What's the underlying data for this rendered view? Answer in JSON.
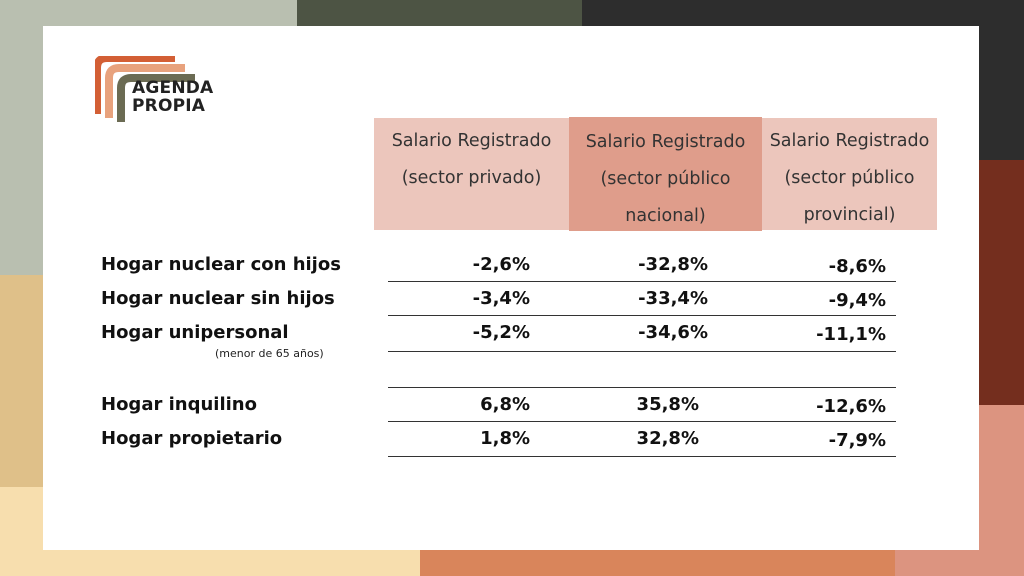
{
  "colors": {
    "col1_header_bg": "#ecc6bc",
    "col2_header_bg": "#df9d8b",
    "col3_header_bg": "#ecc6bc",
    "logo_orange": "#d35f35",
    "logo_peach": "#e8a27d",
    "logo_olive": "#6b6b53"
  },
  "logo": {
    "line1": "AGENDA",
    "line2": "PROPIA"
  },
  "columns": [
    {
      "line1": "Salario Registrado",
      "line2": "(sector privado)",
      "line3": ""
    },
    {
      "line1": "Salario Registrado",
      "line2": "(sector público",
      "line3": "nacional)"
    },
    {
      "line1": "Salario Registrado",
      "line2": "(sector público",
      "line3": "provincial)"
    }
  ],
  "rows": [
    {
      "label": "Hogar nuclear con hijos",
      "values": [
        "-2,6%",
        "-32,8%",
        "-8,6%"
      ]
    },
    {
      "label": "Hogar nuclear sin hijos",
      "values": [
        "-3,4%",
        "-33,4%",
        "-9,4%"
      ]
    },
    {
      "label": "Hogar unipersonal",
      "note": "(menor de 65 años)",
      "values": [
        "-5,2%",
        "-34,6%",
        "-11,1%"
      ]
    },
    {
      "label": "Hogar inquilino",
      "values": [
        "6,8%",
        "35,8%",
        "-12,6%"
      ]
    },
    {
      "label": "Hogar propietario",
      "values": [
        "1,8%",
        "32,8%",
        "-7,9%"
      ]
    }
  ]
}
